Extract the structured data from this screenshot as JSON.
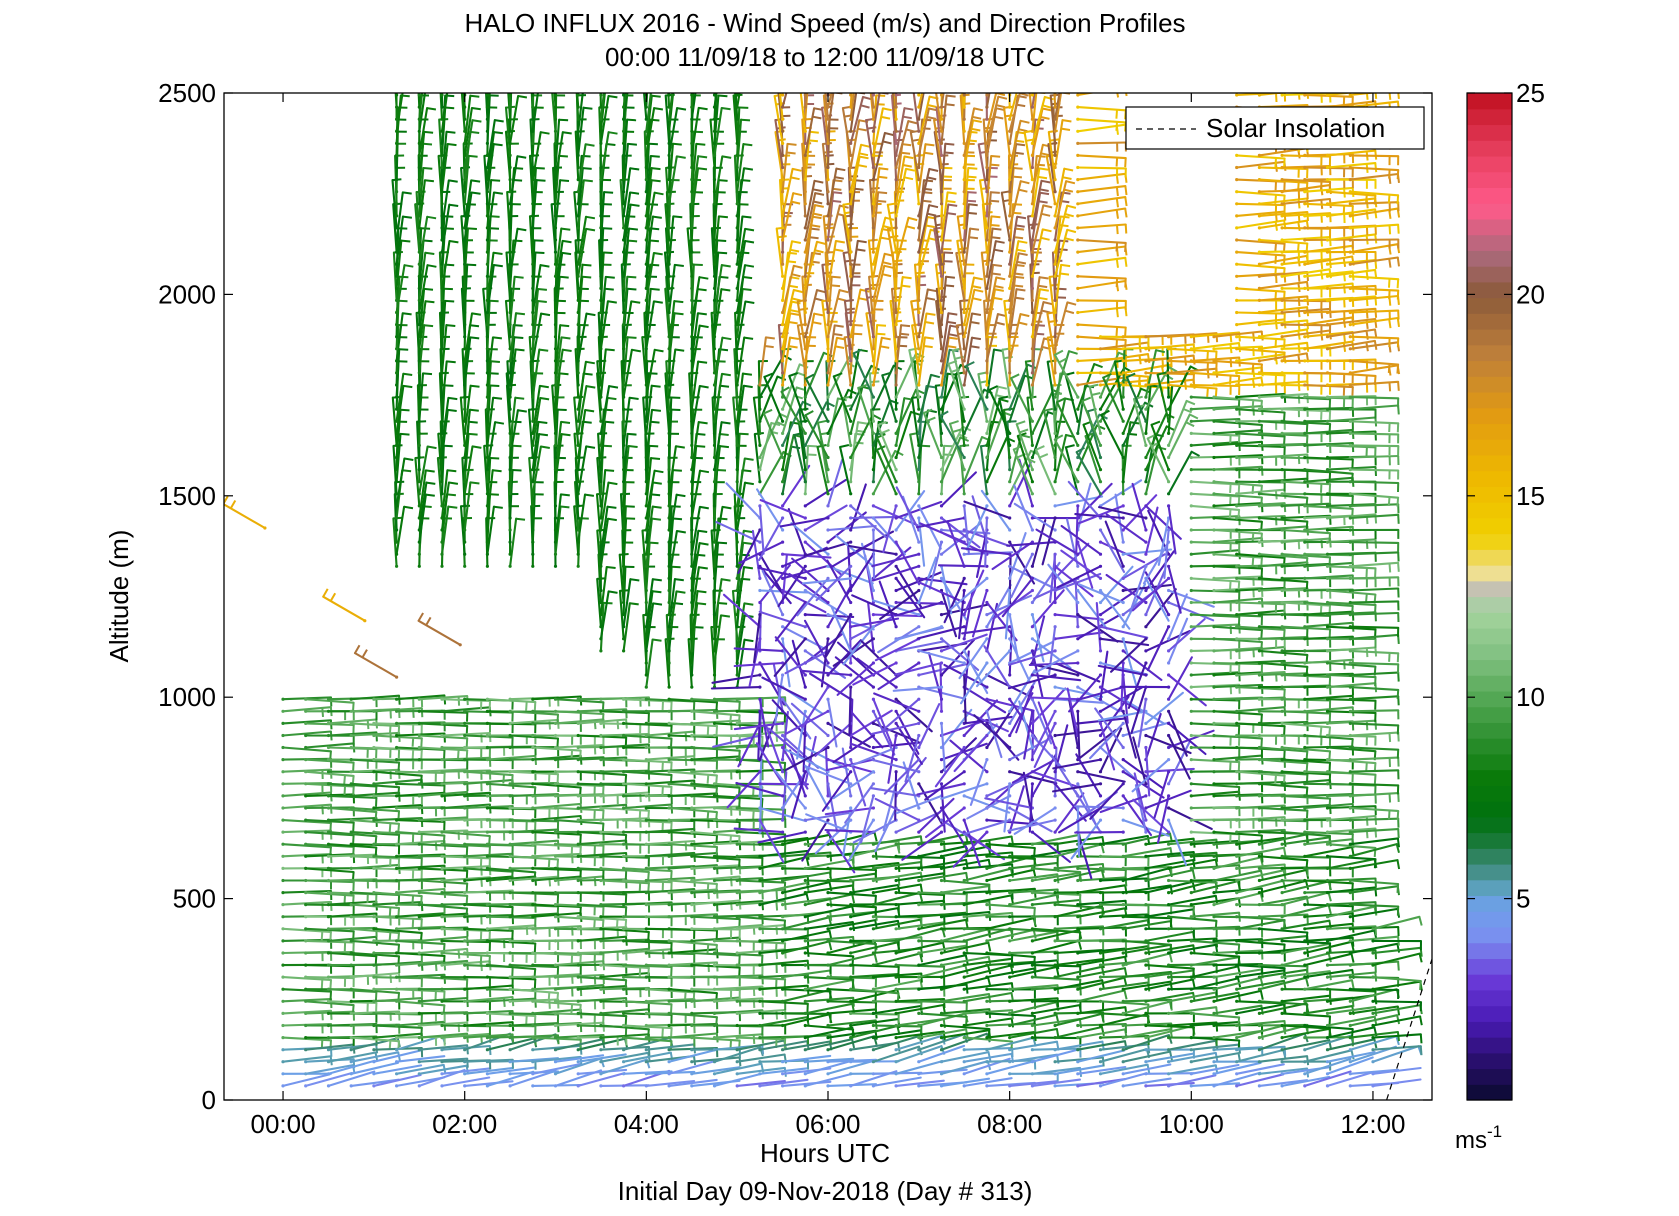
{
  "chart_data": {
    "type": "wind-barb",
    "title": "HALO INFLUX 2016 - Wind Speed (m/s) and Direction Profiles",
    "subtitle": "00:00 11/09/18 to 12:00 11/09/18  UTC",
    "xlabel": "Hours UTC",
    "xlabel2": "Initial Day 09-Nov-2018 (Day # 313)",
    "ylabel": "Altitude (m)",
    "xlim_hours": [
      -0.65,
      12.65
    ],
    "ylim": [
      0,
      2500
    ],
    "x_ticks": [
      {
        "hour": 0,
        "label": "00:00"
      },
      {
        "hour": 2,
        "label": "02:00"
      },
      {
        "hour": 4,
        "label": "04:00"
      },
      {
        "hour": 6,
        "label": "06:00"
      },
      {
        "hour": 8,
        "label": "08:00"
      },
      {
        "hour": 10,
        "label": "10:00"
      },
      {
        "hour": 12,
        "label": "12:00"
      }
    ],
    "y_ticks": [
      {
        "value": 0,
        "label": "0"
      },
      {
        "value": 500,
        "label": "500"
      },
      {
        "value": 1000,
        "label": "1000"
      },
      {
        "value": 1500,
        "label": "1500"
      },
      {
        "value": 2000,
        "label": "2000"
      },
      {
        "value": 2500,
        "label": "2500"
      }
    ],
    "colorbar": {
      "range": [
        0,
        25
      ],
      "unit_label": "ms",
      "unit_exp": "-1",
      "ticks": [
        {
          "value": 5,
          "label": "5"
        },
        {
          "value": 10,
          "label": "10"
        },
        {
          "value": 15,
          "label": "15"
        },
        {
          "value": 20,
          "label": "20"
        },
        {
          "value": 25,
          "label": "25"
        }
      ]
    },
    "legend": {
      "position": "top-right",
      "entry": "Solar Insolation",
      "style": "dashed"
    },
    "solar_insolation": [
      [
        12.15,
        0
      ],
      [
        12.65,
        350
      ]
    ],
    "wind_summary": [
      {
        "hours": [
          0,
          5
        ],
        "altitude": [
          0,
          1000
        ],
        "speed_ms": "7-11",
        "direction": "easterly"
      },
      {
        "hours": [
          5,
          12
        ],
        "altitude": [
          0,
          600
        ],
        "speed_ms": "6-10",
        "direction": "easterly"
      },
      {
        "hours": [
          1,
          4
        ],
        "altitude": [
          1200,
          2500
        ],
        "speed_ms": "7-8",
        "direction": "northerly"
      },
      {
        "hours": [
          5.3,
          8.5
        ],
        "altitude": [
          1800,
          2500
        ],
        "speed_ms": "14-20",
        "direction": "northerly"
      },
      {
        "hours": [
          10.5,
          12
        ],
        "altitude": [
          1800,
          2500
        ],
        "speed_ms": "14-17",
        "direction": "easterly"
      },
      {
        "hours": [
          6,
          10.5
        ],
        "altitude": [
          900,
          1500
        ],
        "speed_ms": "1-4",
        "direction": "variable"
      }
    ],
    "isolated_barbs": [
      {
        "hour": -0.2,
        "altitude": 1420,
        "speed": 16
      },
      {
        "hour": 0.9,
        "altitude": 1190,
        "speed": 16
      },
      {
        "hour": 1.25,
        "altitude": 1050,
        "speed": 19
      },
      {
        "hour": 1.95,
        "altitude": 1130,
        "speed": 19
      }
    ]
  }
}
